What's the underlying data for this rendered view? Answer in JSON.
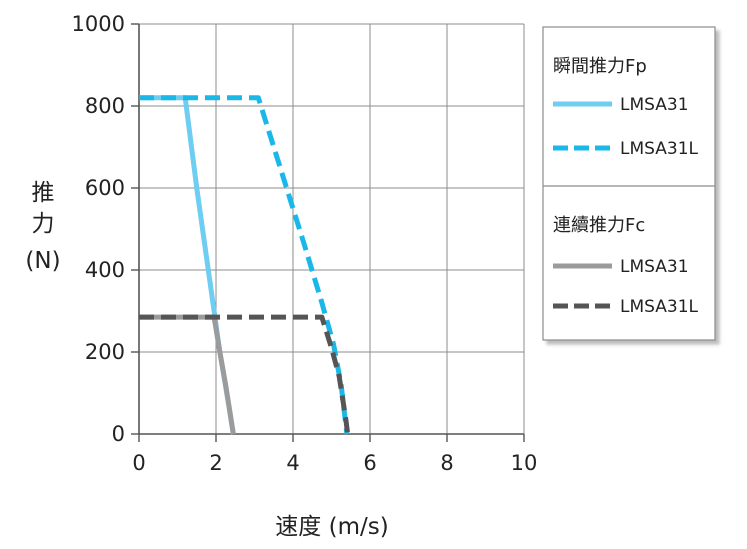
{
  "chart_data": {
    "type": "line",
    "xlabel": "速度 (m/s)",
    "ylabel": "推力 (N)",
    "ylabel_lines": [
      "推",
      "力",
      "(N)"
    ],
    "xlim": [
      0,
      10
    ],
    "ylim": [
      0,
      1000
    ],
    "x_ticks": [
      0,
      2,
      4,
      6,
      8,
      10
    ],
    "y_ticks": [
      0,
      200,
      400,
      600,
      800,
      1000
    ],
    "x_tick_labels": [
      "0",
      "2",
      "4",
      "6",
      "8",
      "10"
    ],
    "y_tick_labels": [
      "0",
      "200",
      "400",
      "600",
      "800",
      "1000"
    ],
    "grid": true,
    "legend_position": "right",
    "legend_groups": [
      {
        "title": "瞬間推力Fp",
        "series_ids": [
          "peak_lmsa31",
          "peak_lmsa31l"
        ]
      },
      {
        "title": "連續推力Fc",
        "series_ids": [
          "cont_lmsa31",
          "cont_lmsa31l"
        ]
      }
    ],
    "series": [
      {
        "id": "peak_lmsa31",
        "name": "LMSA31",
        "group": "瞬間推力Fp",
        "color": "#6fcdf1",
        "style": "solid",
        "points": [
          [
            0,
            820
          ],
          [
            1.2,
            820
          ],
          [
            1.5,
            600
          ],
          [
            1.8,
            400
          ],
          [
            2.1,
            200
          ],
          [
            2.35,
            60
          ],
          [
            2.45,
            0
          ]
        ]
      },
      {
        "id": "peak_lmsa31l",
        "name": "LMSA31L",
        "group": "瞬間推力Fp",
        "color": "#1ab8e8",
        "style": "dashed",
        "points": [
          [
            0,
            820
          ],
          [
            3.1,
            820
          ],
          [
            3.7,
            640
          ],
          [
            4.3,
            460
          ],
          [
            4.75,
            320
          ],
          [
            5.05,
            220
          ],
          [
            5.25,
            120
          ],
          [
            5.4,
            0
          ]
        ]
      },
      {
        "id": "cont_lmsa31",
        "name": "LMSA31",
        "group": "連續推力Fc",
        "color": "#9b9b9b",
        "style": "solid",
        "points": [
          [
            0,
            285
          ],
          [
            1.95,
            285
          ],
          [
            2.1,
            200
          ],
          [
            2.25,
            120
          ],
          [
            2.35,
            60
          ],
          [
            2.45,
            0
          ]
        ]
      },
      {
        "id": "cont_lmsa31l",
        "name": "LMSA31L",
        "group": "連續推力Fc",
        "color": "#555555",
        "style": "dashed",
        "points": [
          [
            0,
            285
          ],
          [
            4.75,
            285
          ],
          [
            5.0,
            210
          ],
          [
            5.2,
            140
          ],
          [
            5.3,
            80
          ],
          [
            5.38,
            30
          ],
          [
            5.42,
            0
          ]
        ]
      }
    ]
  }
}
